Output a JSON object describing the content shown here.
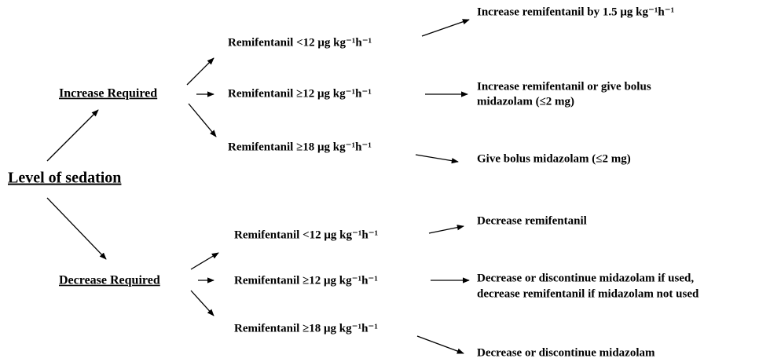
{
  "root": "Level of sedation",
  "branches": [
    {
      "label": "Increase Required",
      "conditions": [
        {
          "condition": "Remifentanil <12 μg kg⁻¹h⁻¹",
          "action": [
            "Increase remifentanil by 1.5 μg kg⁻¹h⁻¹"
          ]
        },
        {
          "condition": "Remifentanil ≥12 μg kg⁻¹h⁻¹",
          "action": [
            "Increase remifentanil or give bolus",
            "midazolam (≤2 mg)"
          ]
        },
        {
          "condition": "Remifentanil ≥18 μg kg⁻¹h⁻¹",
          "action": [
            "Give bolus midazolam (≤2 mg)"
          ]
        }
      ]
    },
    {
      "label": "Decrease Required",
      "conditions": [
        {
          "condition": "Remifentanil <12 μg kg⁻¹h⁻¹",
          "action": [
            "Decrease remifentanil"
          ]
        },
        {
          "condition": "Remifentanil ≥12 μg kg⁻¹h⁻¹",
          "action": [
            "Decrease or discontinue midazolam if used,",
            "decrease remifentanil if midazolam not used"
          ]
        },
        {
          "condition": "Remifentanil ≥18 μg kg⁻¹h⁻¹",
          "action": [
            "Decrease or discontinue midazolam"
          ]
        }
      ]
    }
  ]
}
